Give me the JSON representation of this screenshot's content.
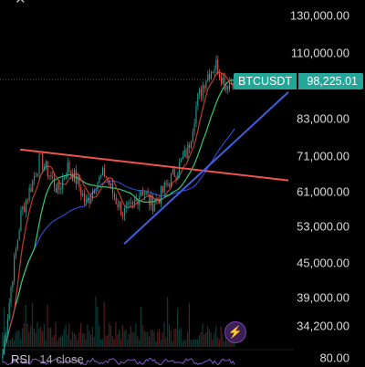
{
  "ticker": {
    "symbol": "BTCUSDT",
    "price": "98,225.01"
  },
  "price_axis": [
    "130,000.00",
    "110,000.00",
    "83,000.00",
    "71,000.00",
    "61,000.00",
    "53,000.00",
    "45,000.00",
    "39,000.00",
    "34,200.00"
  ],
  "rsi": {
    "name": "RSI",
    "params": "14 close",
    "level": "80.00"
  },
  "colors": {
    "background": "#000000",
    "up_candle": "#26a69a",
    "down_candle": "#ef5350",
    "resistance_line": "#ef5350",
    "support_line": "#3f5fe0",
    "ma_short": "#c0392b",
    "ma_mid": "#2ecc71",
    "ma_long": "#2f48c8",
    "accent": "#26a69a"
  },
  "icons": {
    "top_left": "close-icon",
    "flash": "lightning-icon"
  },
  "chart_data": {
    "type": "candlestick",
    "symbol": "BTCUSDT",
    "last_price": 98225.01,
    "y_scale": "log",
    "y_ticks": [
      130000,
      110000,
      83000,
      71000,
      61000,
      53000,
      45000,
      39000,
      34200
    ],
    "close_path": [
      30000,
      42000,
      56000,
      62000,
      70000,
      66000,
      61000,
      68000,
      64000,
      58000,
      63000,
      66000,
      60000,
      56000,
      57000,
      62000,
      58000,
      60000,
      64000,
      68000,
      73000,
      90000,
      100000,
      105000,
      96000,
      98225
    ],
    "trendlines": [
      {
        "kind": "resistance",
        "from": 73000,
        "to": 64000
      },
      {
        "kind": "support",
        "from": 49000,
        "to": 93000
      }
    ],
    "moving_averages": 3,
    "lower_pane": "RSI 14 close"
  }
}
